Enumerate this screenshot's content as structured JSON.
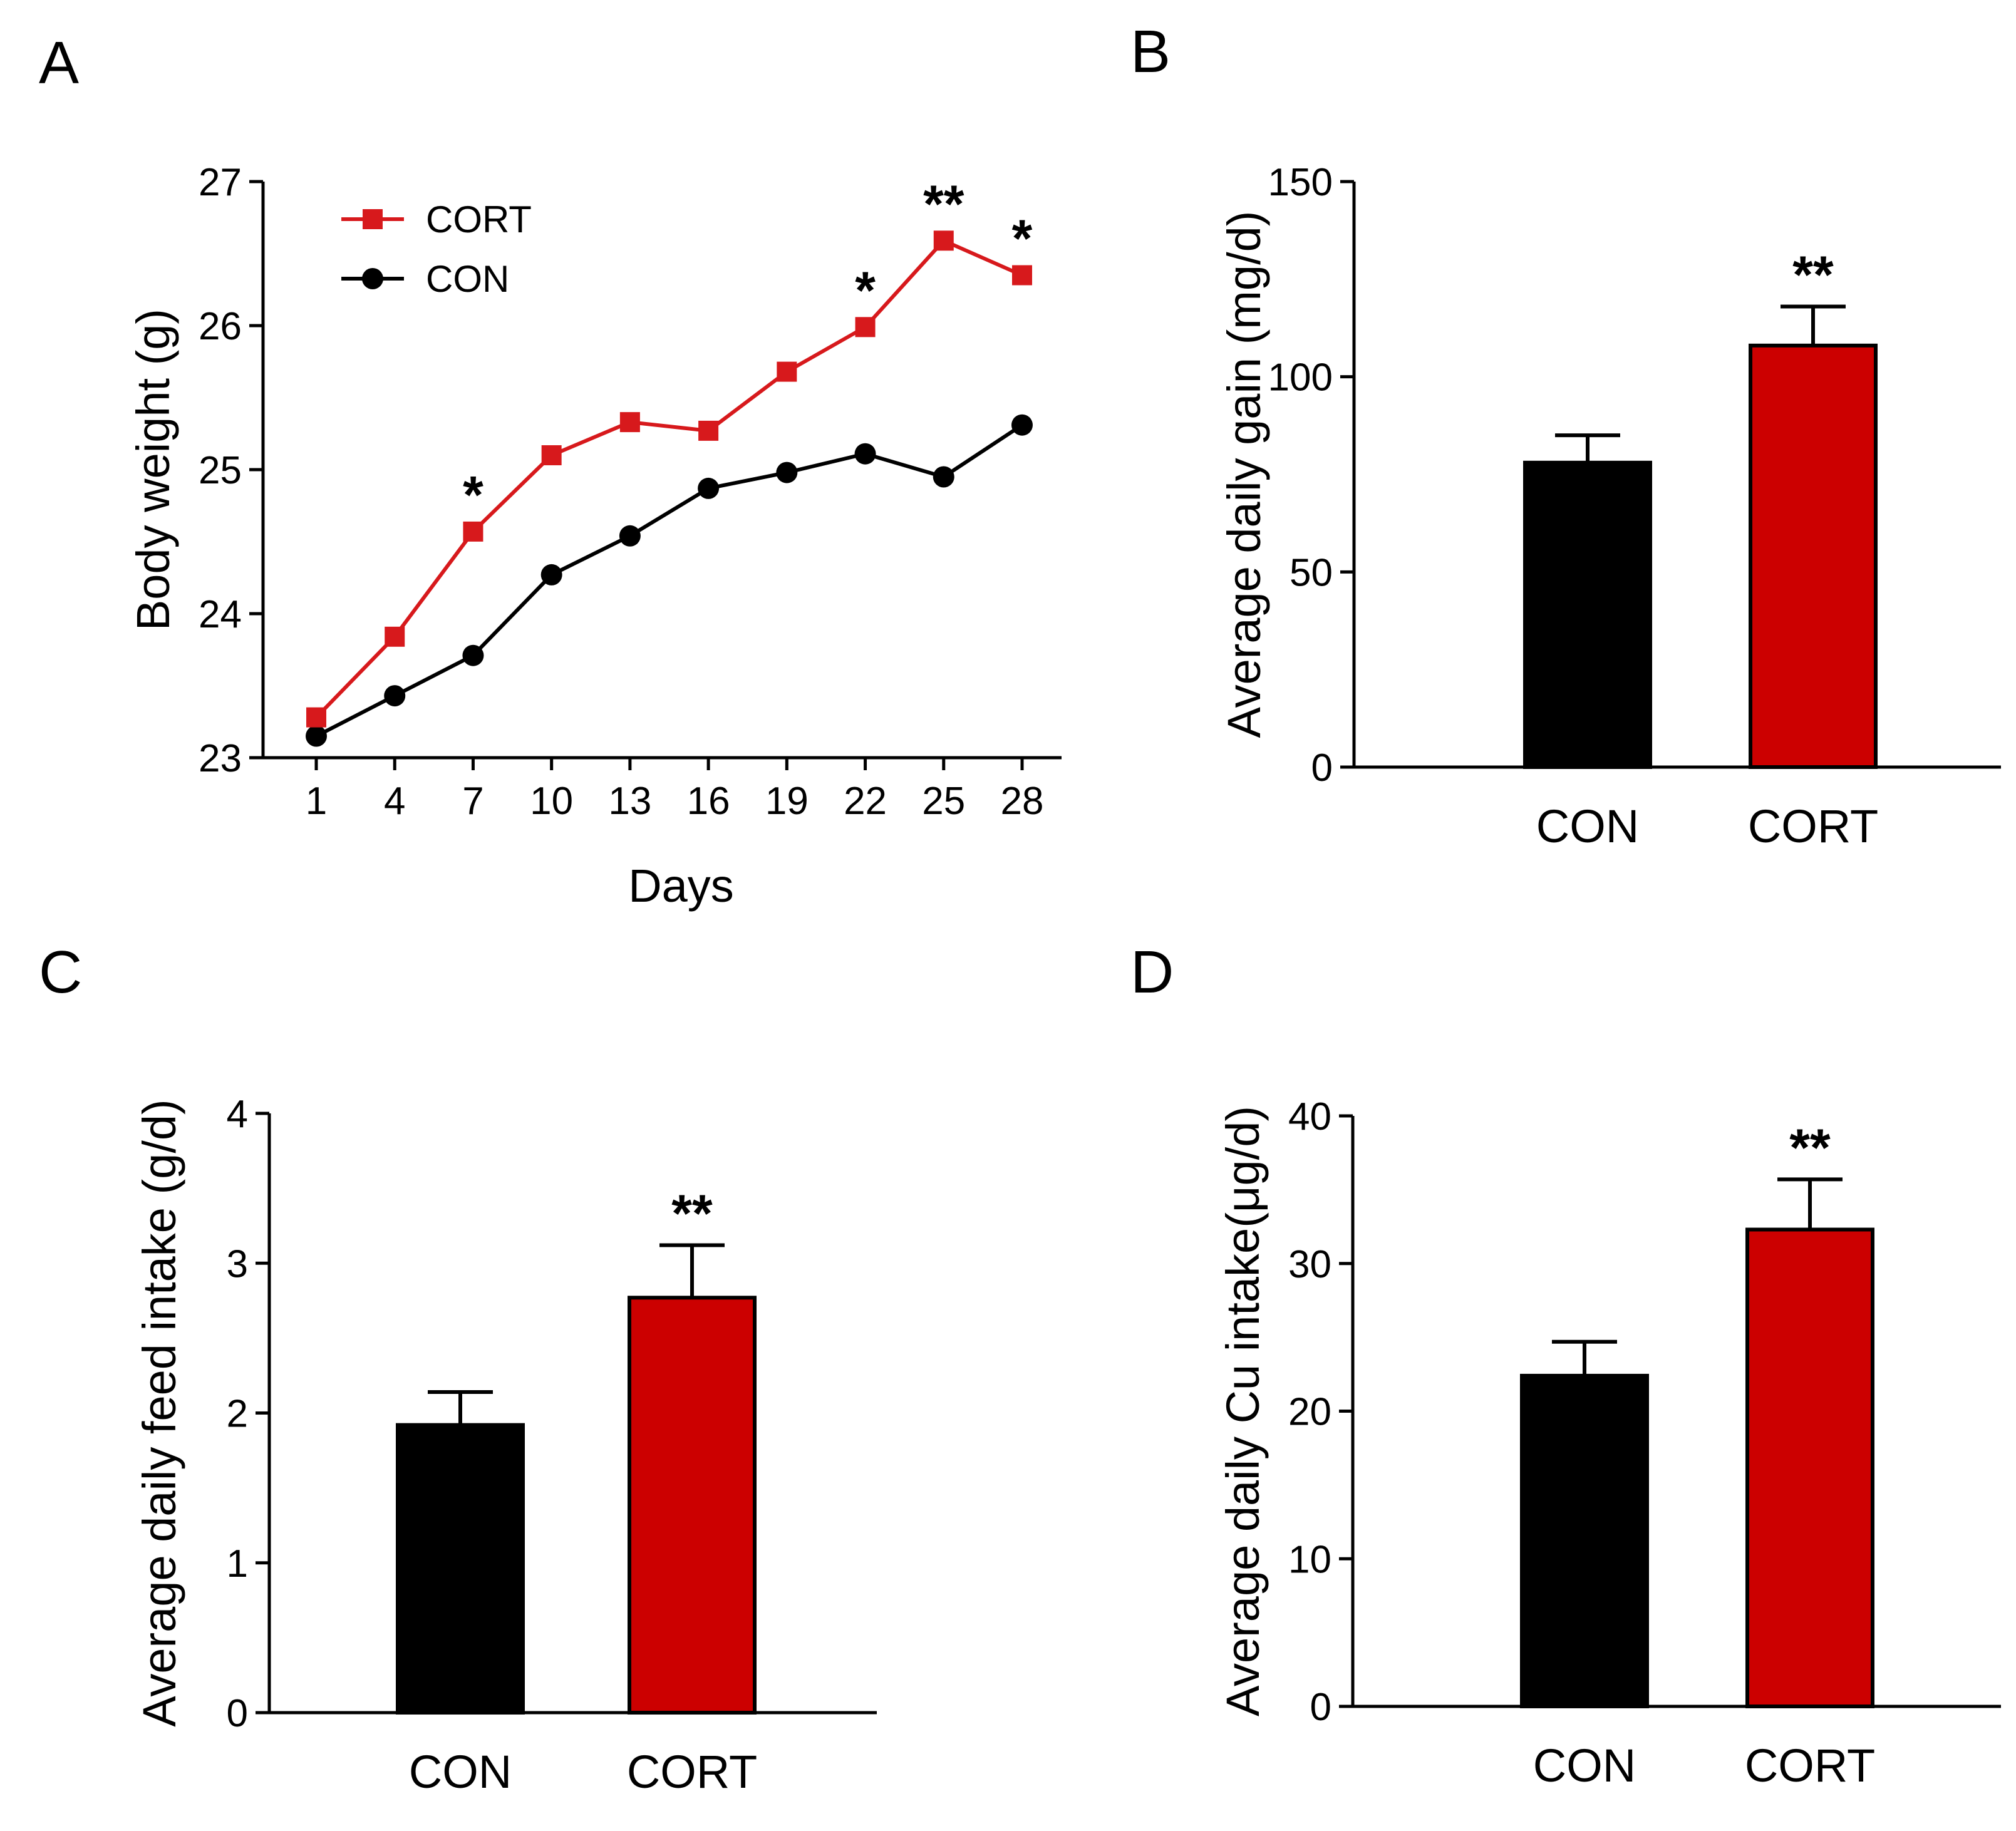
{
  "chart_data": [
    {
      "panel": "A",
      "type": "line",
      "x": [
        1,
        4,
        7,
        10,
        13,
        16,
        19,
        22,
        25,
        28
      ],
      "series": [
        {
          "name": "CORT",
          "color": "#d7191c",
          "marker": "square",
          "values": [
            23.28,
            23.84,
            24.57,
            25.1,
            25.33,
            25.27,
            25.68,
            25.99,
            26.59,
            26.35
          ]
        },
        {
          "name": "CON",
          "color": "#000000",
          "marker": "circle",
          "values": [
            23.15,
            23.43,
            23.71,
            24.27,
            24.54,
            24.87,
            24.98,
            25.11,
            24.95,
            25.31
          ]
        }
      ],
      "xticks": [
        "1",
        "4",
        "7",
        "10",
        "13",
        "16",
        "19",
        "22",
        "25",
        "28"
      ],
      "yticks": [
        "23",
        "24",
        "25",
        "26",
        "27"
      ],
      "xlabel": "Days",
      "ylabel": "Body weight (g)",
      "ylim": [
        23,
        27
      ],
      "legend": [
        "CORT",
        "CON"
      ],
      "legend_position": "top-left",
      "annotations": [
        {
          "x": 7,
          "text": "*"
        },
        {
          "x": 22,
          "text": "*"
        },
        {
          "x": 25,
          "text": "**"
        },
        {
          "x": 28,
          "text": "*"
        }
      ]
    },
    {
      "panel": "B",
      "type": "bar",
      "categories": [
        "CON",
        "CORT"
      ],
      "values": [
        78,
        108
      ],
      "errors": [
        7,
        10
      ],
      "colors": [
        "#000000",
        "#cc0000"
      ],
      "yticks": [
        "0",
        "50",
        "100",
        "150"
      ],
      "ylabel": "Average daily gain (mg/d)",
      "ylim": [
        0,
        150
      ],
      "annotations": [
        {
          "category": "CORT",
          "text": "**"
        }
      ]
    },
    {
      "panel": "C",
      "type": "bar",
      "categories": [
        "CON",
        "CORT"
      ],
      "values": [
        1.92,
        2.77
      ],
      "errors": [
        0.22,
        0.35
      ],
      "colors": [
        "#000000",
        "#cc0000"
      ],
      "yticks": [
        "0",
        "1",
        "2",
        "3",
        "4"
      ],
      "ylabel": "Average daily feed intake (g/d)",
      "ylim": [
        0,
        4
      ],
      "annotations": [
        {
          "category": "CORT",
          "text": "**"
        }
      ]
    },
    {
      "panel": "D",
      "type": "bar",
      "categories": [
        "CON",
        "CORT"
      ],
      "values": [
        22.4,
        32.3
      ],
      "errors": [
        2.3,
        3.4
      ],
      "colors": [
        "#000000",
        "#cc0000"
      ],
      "yticks": [
        "0",
        "10",
        "20",
        "30",
        "40"
      ],
      "ylabel": "Average daily Cu intake(μg/d)",
      "ylim": [
        0,
        40
      ],
      "annotations": [
        {
          "category": "CORT",
          "text": "**"
        }
      ]
    }
  ]
}
